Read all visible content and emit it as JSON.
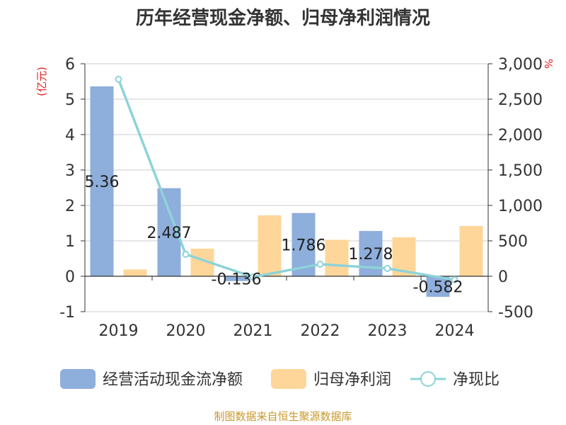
{
  "chart_data": {
    "type": "bar",
    "title": "历年经营现金净额、归母净利润情况",
    "categories": [
      "2019",
      "2020",
      "2021",
      "2022",
      "2023",
      "2024"
    ],
    "y_left": {
      "unit": "(亿元)",
      "range": [
        -1,
        6
      ],
      "ticks": [
        "-1",
        "0",
        "1",
        "2",
        "3",
        "4",
        "5",
        "6"
      ]
    },
    "y_right": {
      "unit": "%",
      "range": [
        -500,
        3000
      ],
      "ticks": [
        "-500",
        "0",
        "500",
        "1,000",
        "1,500",
        "2,000",
        "2,500",
        "3,000"
      ]
    },
    "grid": true,
    "legend_position": "bottom",
    "series": [
      {
        "name": "经营活动现金流净额",
        "type": "bar",
        "axis": "left",
        "color": "#8eaedb",
        "values": [
          5.36,
          2.487,
          -0.136,
          1.786,
          1.278,
          -0.582
        ],
        "labels": [
          "5.36",
          "2.487",
          "-0.136",
          "1.786",
          "1.278",
          "-0.582"
        ]
      },
      {
        "name": "归母净利润",
        "type": "bar",
        "axis": "left",
        "color": "#ffd699",
        "values": [
          0.19,
          0.78,
          1.72,
          1.03,
          1.1,
          1.42
        ]
      },
      {
        "name": "净现比",
        "type": "line",
        "axis": "right",
        "color": "#8dd3d8",
        "values": [
          2780,
          310,
          -10,
          170,
          110,
          -50
        ]
      }
    ],
    "source": "制图数据来自恒生聚源数据库"
  }
}
